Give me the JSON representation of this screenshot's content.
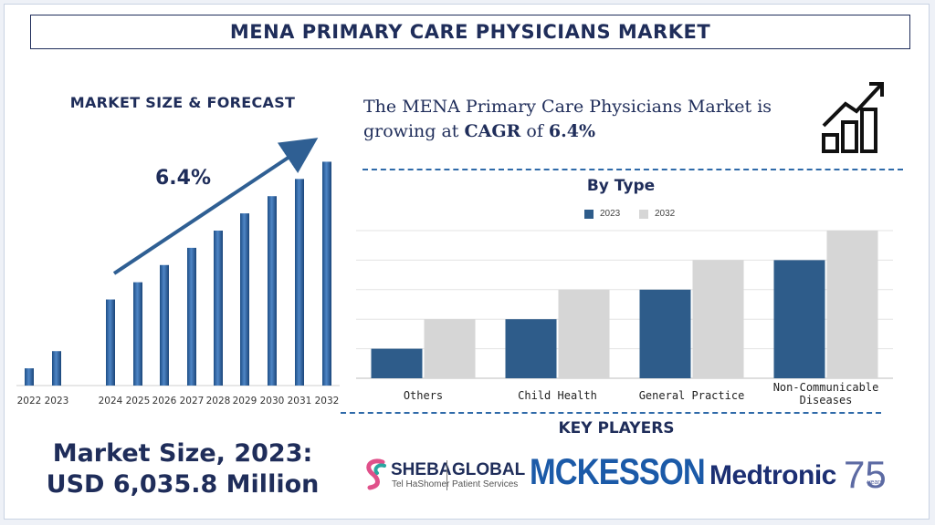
{
  "header": {
    "title": "MENA PRIMARY CARE PHYSICIANS MARKET"
  },
  "market_forecast": {
    "title": "MARKET SIZE & FORECAST",
    "cagr_label": "6.4%",
    "size_line1": "Market Size, 2023:",
    "size_line2": "USD 6,035.8 Million"
  },
  "statement": {
    "prefix": "The MENA Primary Care Physicians Market is growing at ",
    "cagr_word": "CAGR",
    "middle": " of ",
    "value": "6.4%"
  },
  "by_type": {
    "title": "By Type"
  },
  "key_players": {
    "title": "KEY PLAYERS",
    "sheba_name": "SHEBA",
    "sheba_sub": "Tel HaShomer",
    "sheba_global": "GLOBAL",
    "sheba_global_sub": "Patient Services",
    "mckesson": "MCKESSON",
    "medtronic": "Medtronic",
    "medtronic_75": "75",
    "medtronic_years": "years"
  },
  "colors": {
    "navy": "#1f2d5a",
    "series_2023": "#2e5c8a",
    "series_2032": "#d6d6d6",
    "bar_blue": "#2a5f9e"
  },
  "chart_data": [
    {
      "type": "bar",
      "title": "MARKET SIZE & FORECAST",
      "categories": [
        "2022",
        "2023",
        "2024",
        "2025",
        "2026",
        "2027",
        "2028",
        "2029",
        "2030",
        "2031",
        "2032"
      ],
      "values": [
        1.0,
        2.0,
        5.0,
        6.0,
        7.0,
        8.0,
        9.0,
        10.0,
        11.0,
        12.0,
        13.0
      ],
      "ylim": [
        0,
        13.5
      ],
      "xlabel": "",
      "ylabel": "",
      "annotation": "6.4%"
    },
    {
      "type": "bar",
      "title": "By Type",
      "categories": [
        "Others",
        "Child Health",
        "General Practice",
        "Non-Communicable Diseases"
      ],
      "series": [
        {
          "name": "2023",
          "values": [
            1,
            2,
            3,
            4
          ]
        },
        {
          "name": "2032",
          "values": [
            2,
            3,
            4,
            5
          ]
        }
      ],
      "ylim": [
        0,
        5
      ],
      "grid": true,
      "legend": "top-center"
    }
  ]
}
